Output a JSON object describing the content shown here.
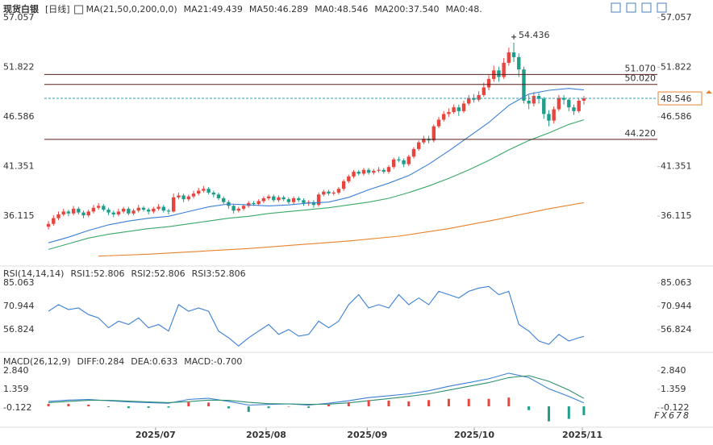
{
  "chart_data": [
    {
      "type": "candlestick",
      "title": "现货白银",
      "period": "[日线]",
      "indicator": "MA(21,50,0,200,0,0)",
      "up_color": "#e8453f",
      "down_color": "#1f9e8a",
      "open": [
        35.0,
        35.3,
        35.9,
        36.3,
        36.6,
        36.4,
        36.9,
        36.5,
        36.2,
        36.6,
        37.0,
        37.2,
        36.8,
        36.5,
        36.3,
        36.6,
        36.9,
        36.4,
        36.7,
        37.0,
        36.8,
        36.6,
        36.9,
        37.1,
        36.7,
        36.6,
        38.1,
        38.3,
        37.9,
        38.2,
        38.5,
        38.8,
        39.0,
        38.6,
        38.4,
        38.0,
        37.6,
        37.2,
        36.7,
        36.9,
        37.2,
        37.5,
        37.4,
        37.7,
        38.0,
        38.2,
        37.8,
        38.1,
        37.9,
        37.6,
        38.0,
        37.8,
        37.5,
        37.6,
        37.3,
        38.4,
        38.7,
        38.5,
        38.6,
        39.0,
        39.8,
        40.3,
        40.8,
        40.6,
        41.0,
        40.7,
        40.9,
        41.0,
        40.8,
        41.3,
        42.1,
        42.0,
        41.6,
        42.4,
        43.2,
        43.9,
        44.3,
        44.1,
        45.6,
        46.3,
        46.9,
        47.1,
        47.6,
        47.2,
        48.0,
        48.6,
        48.4,
        48.9,
        49.7,
        50.6,
        51.5,
        50.8,
        52.3,
        53.4,
        52.9,
        51.6,
        48.3,
        48.0,
        48.8,
        48.5,
        46.9,
        46.2,
        47.4,
        48.6,
        48.4,
        47.6,
        47.2,
        48.3
      ],
      "high": [
        35.6,
        36.2,
        36.6,
        36.9,
        36.8,
        37.2,
        37.1,
        36.7,
        36.8,
        37.3,
        37.5,
        37.4,
        37.0,
        36.7,
        36.9,
        37.1,
        37.1,
        36.9,
        37.3,
        37.2,
        37.0,
        37.1,
        37.4,
        37.3,
        36.9,
        38.5,
        38.6,
        38.5,
        38.4,
        38.8,
        39.1,
        39.3,
        39.2,
        38.8,
        38.6,
        38.2,
        37.8,
        37.4,
        37.1,
        37.4,
        37.7,
        37.7,
        37.9,
        38.2,
        38.4,
        38.4,
        38.3,
        38.3,
        38.1,
        38.2,
        38.2,
        38.0,
        37.8,
        37.8,
        38.6,
        38.9,
        38.9,
        38.8,
        39.2,
        40.0,
        40.5,
        41.0,
        41.0,
        41.2,
        41.2,
        41.1,
        41.3,
        41.2,
        41.5,
        42.3,
        42.4,
        42.2,
        42.6,
        43.4,
        44.1,
        44.6,
        44.6,
        45.8,
        46.6,
        47.2,
        47.5,
        47.9,
        47.9,
        48.3,
        48.9,
        49.0,
        49.3,
        50.2,
        51.0,
        52.0,
        51.9,
        52.8,
        53.9,
        54.436,
        53.3,
        51.9,
        48.9,
        49.2,
        49.1,
        48.7,
        47.3,
        47.7,
        48.9,
        48.9,
        48.6,
        47.9,
        48.6,
        48.8
      ],
      "low": [
        34.7,
        35.1,
        35.7,
        36.1,
        36.1,
        36.2,
        36.3,
        35.9,
        36.0,
        36.4,
        36.8,
        36.6,
        36.2,
        36.0,
        36.1,
        36.4,
        36.2,
        36.2,
        36.5,
        36.6,
        36.3,
        36.4,
        36.7,
        36.5,
        36.3,
        36.5,
        37.9,
        37.6,
        37.7,
        38.0,
        38.3,
        38.6,
        38.4,
        38.1,
        37.8,
        37.4,
        36.9,
        36.4,
        36.5,
        36.7,
        37.0,
        37.2,
        37.2,
        37.5,
        37.8,
        37.6,
        37.6,
        37.7,
        37.4,
        37.4,
        37.6,
        37.2,
        37.2,
        37.0,
        37.1,
        38.2,
        38.3,
        38.3,
        38.4,
        38.8,
        39.6,
        40.1,
        40.4,
        40.4,
        40.5,
        40.5,
        40.7,
        40.6,
        40.6,
        41.1,
        41.8,
        41.3,
        41.4,
        42.2,
        43.0,
        43.7,
        43.8,
        43.9,
        45.4,
        46.1,
        46.6,
        46.9,
        46.7,
        47.0,
        47.8,
        48.1,
        48.2,
        48.7,
        49.4,
        50.3,
        50.3,
        50.6,
        52.0,
        52.4,
        50.8,
        48.0,
        47.4,
        47.7,
        48.0,
        46.4,
        45.6,
        45.9,
        47.2,
        47.9,
        47.2,
        46.8,
        47.0,
        47.9
      ],
      "close": [
        35.3,
        35.9,
        36.3,
        36.6,
        36.4,
        36.9,
        36.5,
        36.2,
        36.6,
        37.0,
        37.2,
        36.8,
        36.5,
        36.3,
        36.6,
        36.9,
        36.4,
        36.7,
        37.0,
        36.8,
        36.6,
        36.9,
        37.1,
        36.7,
        36.6,
        38.1,
        38.3,
        37.9,
        38.2,
        38.5,
        38.8,
        39.0,
        38.6,
        38.4,
        38.0,
        37.6,
        37.2,
        36.7,
        36.9,
        37.2,
        37.5,
        37.4,
        37.7,
        38.0,
        38.2,
        37.8,
        38.1,
        37.9,
        37.6,
        38.0,
        37.8,
        37.5,
        37.6,
        37.3,
        38.4,
        38.7,
        38.5,
        38.6,
        39.0,
        39.8,
        40.3,
        40.8,
        40.6,
        41.0,
        40.7,
        40.9,
        41.0,
        40.8,
        41.3,
        42.1,
        42.0,
        41.6,
        42.4,
        43.2,
        43.9,
        44.3,
        44.1,
        45.6,
        46.3,
        46.9,
        47.1,
        47.6,
        47.2,
        48.0,
        48.6,
        48.4,
        48.9,
        49.7,
        50.6,
        51.5,
        50.8,
        52.3,
        53.4,
        52.9,
        51.6,
        48.3,
        48.0,
        48.8,
        48.5,
        46.9,
        46.2,
        47.4,
        48.6,
        48.4,
        47.6,
        47.2,
        48.3,
        48.546
      ],
      "series": [
        {
          "name": "MA21:49.439",
          "color": "#3b7fd4",
          "x": [
            0,
            4,
            8,
            12,
            16,
            20,
            24,
            28,
            32,
            36,
            40,
            44,
            48,
            52,
            56,
            60,
            64,
            68,
            72,
            76,
            80,
            84,
            88,
            92,
            96,
            100,
            104,
            107
          ],
          "values": [
            33.3,
            33.9,
            34.6,
            35.2,
            35.6,
            35.9,
            36.1,
            36.6,
            37.1,
            37.4,
            37.3,
            37.2,
            37.3,
            37.5,
            37.6,
            38.1,
            38.9,
            39.6,
            40.4,
            41.6,
            43.0,
            44.5,
            46.0,
            47.8,
            49.0,
            49.4,
            49.6,
            49.439
          ]
        },
        {
          "name": "MA50:46.289",
          "color": "#3aa86a",
          "x": [
            0,
            4,
            8,
            12,
            16,
            20,
            24,
            28,
            32,
            36,
            40,
            44,
            48,
            52,
            56,
            60,
            64,
            68,
            72,
            76,
            80,
            84,
            88,
            92,
            96,
            100,
            104,
            107
          ],
          "values": [
            32.6,
            33.2,
            33.8,
            34.2,
            34.5,
            34.8,
            35.0,
            35.3,
            35.6,
            35.9,
            36.1,
            36.4,
            36.6,
            36.8,
            37.0,
            37.3,
            37.6,
            38.0,
            38.6,
            39.3,
            40.1,
            41.0,
            42.0,
            43.1,
            44.1,
            44.9,
            45.8,
            46.289
          ]
        },
        {
          "name": "MA0:48.546",
          "color": "#35b3c6"
        },
        {
          "name": "MA200:37.540",
          "color": "#e8822c",
          "x": [
            10,
            20,
            30,
            40,
            50,
            60,
            70,
            80,
            90,
            100,
            107
          ],
          "values": [
            31.9,
            32.1,
            32.4,
            32.7,
            33.1,
            33.5,
            34.0,
            34.8,
            35.8,
            36.9,
            37.54
          ]
        },
        {
          "name": "MA0:48.",
          "color": "#e88aa6"
        }
      ],
      "levels": [
        {
          "value": 51.07,
          "label": "51.070"
        },
        {
          "value": 50.02,
          "label": "50.020"
        },
        {
          "value": 44.22,
          "label": "44.220"
        }
      ],
      "level_color": "#5a1f1f",
      "price_line_color": "#2b9cb0",
      "peak_color": "#e0435a",
      "xlim": [
        -0.5,
        107.5
      ],
      "xticks": [
        {
          "value": 21.4,
          "label": "2025/07"
        },
        {
          "value": 43.5,
          "label": "2025/08"
        },
        {
          "value": 63.7,
          "label": "2025/09"
        },
        {
          "value": 85.1,
          "label": "2025/10"
        },
        {
          "value": 106.7,
          "label": "2025/11"
        }
      ],
      "ylim": [
        30.85,
        57.4
      ],
      "yticks": [
        36.115,
        41.351,
        46.586,
        51.822,
        57.057
      ],
      "watermark": "FX678"
    },
    {
      "type": "line",
      "title": "RSI(14,14,14)",
      "series": [
        {
          "name": "RSI1:52.806",
          "color": "#3b7fd4",
          "x": [
            0,
            2,
            4,
            6,
            8,
            10,
            12,
            14,
            16,
            18,
            20,
            22,
            24,
            26,
            28,
            30,
            32,
            34,
            36,
            38,
            40,
            42,
            44,
            46,
            48,
            50,
            52,
            54,
            56,
            58,
            60,
            62,
            64,
            66,
            68,
            70,
            72,
            74,
            76,
            78,
            80,
            82,
            84,
            86,
            88,
            90,
            92,
            94,
            96,
            98,
            100,
            102,
            104,
            106,
            107
          ],
          "values": [
            68,
            72,
            69,
            70,
            66,
            64,
            58,
            62,
            60,
            64,
            58,
            60,
            56,
            72,
            68,
            70,
            68,
            56,
            52,
            47,
            52,
            56,
            60,
            54,
            57,
            53,
            54,
            62,
            58,
            62,
            72,
            78,
            70,
            72,
            70,
            78,
            72,
            76,
            72,
            80,
            78,
            76,
            80,
            82,
            83,
            78,
            80,
            60,
            56,
            50,
            48,
            54,
            50,
            52,
            52.806
          ]
        },
        {
          "name": "RSI2:52.806",
          "color": "#3aa86a"
        },
        {
          "name": "RSI3:52.806",
          "color": "#35b3c6"
        }
      ],
      "ylim": [
        43.2,
        95.3
      ],
      "yticks": [
        56.824,
        70.944,
        85.063
      ]
    },
    {
      "type": "macd",
      "title": "MACD(26,12,9)",
      "series": [
        {
          "name": "DIFF:0.284",
          "color": "#3b7fd4",
          "x": [
            0,
            4,
            8,
            12,
            16,
            20,
            24,
            28,
            32,
            36,
            40,
            44,
            48,
            52,
            56,
            60,
            64,
            68,
            72,
            76,
            80,
            84,
            88,
            92,
            96,
            100,
            104,
            107
          ],
          "values": [
            0.4,
            0.5,
            0.55,
            0.45,
            0.35,
            0.3,
            0.25,
            0.55,
            0.65,
            0.4,
            0.1,
            0.15,
            0.2,
            0.1,
            0.25,
            0.45,
            0.7,
            0.85,
            1.0,
            1.25,
            1.6,
            1.9,
            2.2,
            2.65,
            2.3,
            1.4,
            0.8,
            0.284
          ]
        },
        {
          "name": "DEA:0.633",
          "color": "#2e8f6e",
          "x": [
            0,
            4,
            8,
            12,
            16,
            20,
            24,
            28,
            32,
            36,
            40,
            44,
            48,
            52,
            56,
            60,
            64,
            68,
            72,
            76,
            80,
            84,
            88,
            92,
            96,
            100,
            104,
            107
          ],
          "values": [
            0.3,
            0.4,
            0.48,
            0.48,
            0.42,
            0.36,
            0.3,
            0.38,
            0.5,
            0.48,
            0.32,
            0.22,
            0.2,
            0.16,
            0.18,
            0.28,
            0.45,
            0.62,
            0.8,
            1.0,
            1.3,
            1.6,
            1.9,
            2.3,
            2.45,
            2.0,
            1.3,
            0.633
          ]
        },
        {
          "name": "MACD:-0.700",
          "color": "#e8453f",
          "negative_color": "#1f9e8a",
          "kind": "histogram",
          "x": [
            0,
            4,
            8,
            12,
            16,
            20,
            24,
            28,
            32,
            36,
            40,
            44,
            48,
            52,
            56,
            60,
            64,
            68,
            72,
            76,
            80,
            84,
            88,
            92,
            96,
            100,
            104,
            107
          ],
          "values": [
            0.2,
            0.2,
            0.14,
            -0.06,
            -0.14,
            -0.12,
            -0.1,
            0.34,
            0.3,
            -0.16,
            -0.44,
            -0.14,
            0,
            -0.12,
            0.14,
            0.34,
            0.5,
            0.46,
            0.4,
            0.5,
            0.6,
            0.6,
            0.6,
            0.7,
            -0.3,
            -1.2,
            -1.0,
            -0.7
          ]
        }
      ],
      "ylim": [
        -1.67,
        4.32
      ],
      "yticks": [
        {
          "value": -0.122,
          "label": "-0.122"
        },
        1.359,
        {
          "value": 2.84,
          "label": "2.840"
        }
      ]
    }
  ]
}
